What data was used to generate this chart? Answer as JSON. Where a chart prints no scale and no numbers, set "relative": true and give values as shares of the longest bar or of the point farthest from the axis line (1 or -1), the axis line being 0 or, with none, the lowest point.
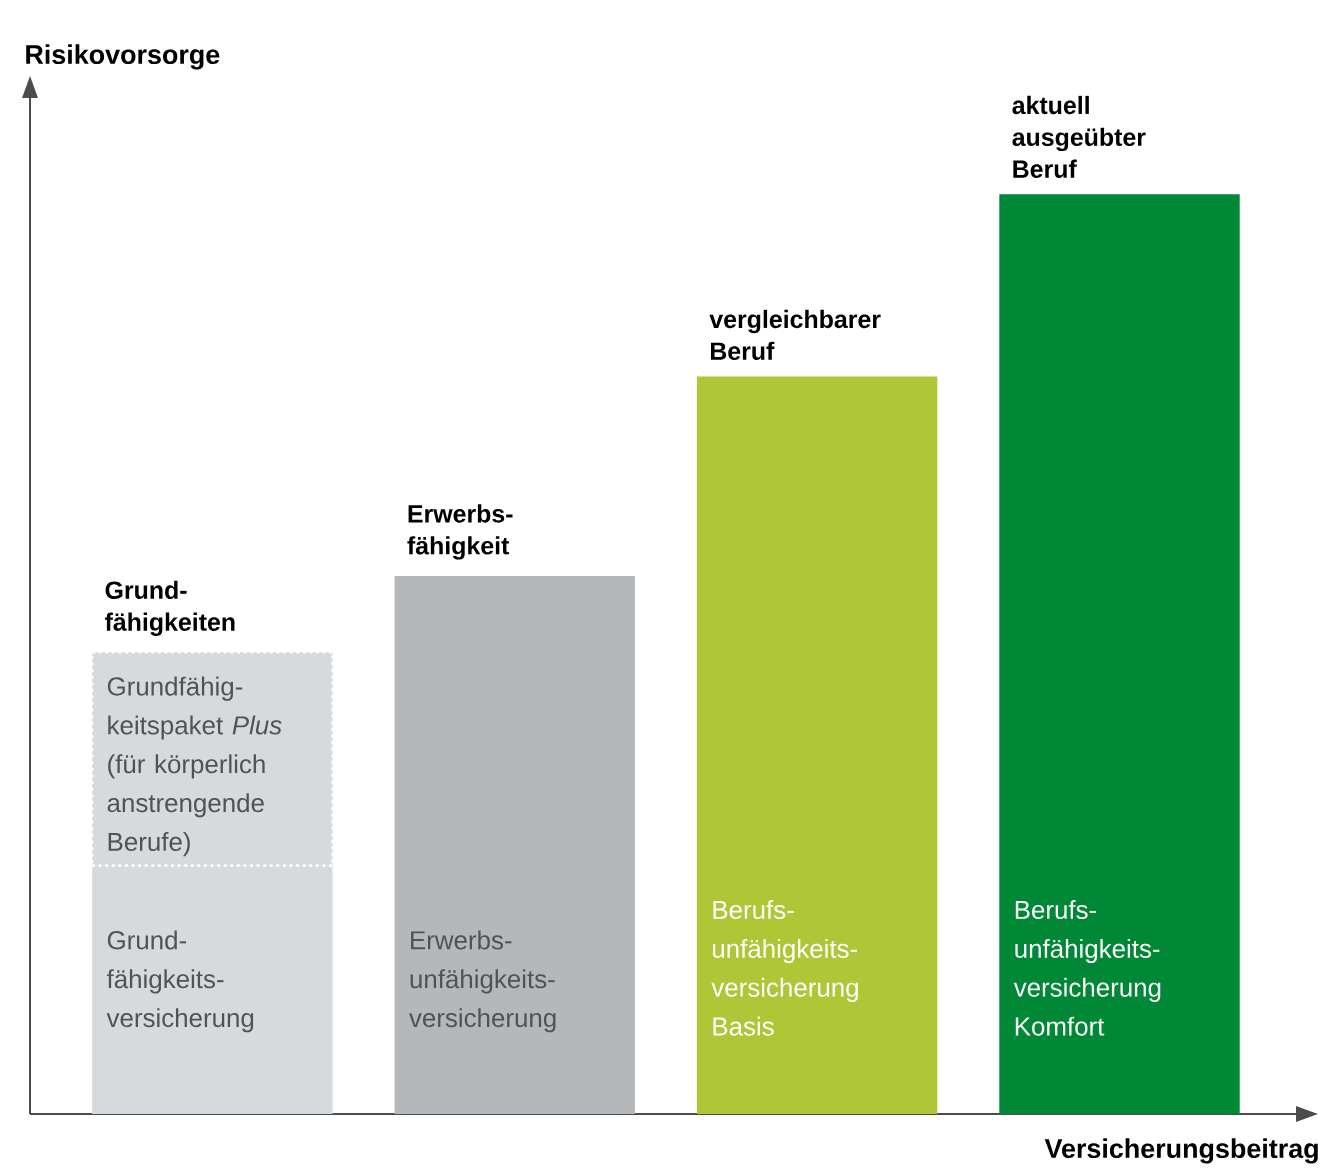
{
  "chart_data": {
    "type": "bar",
    "relative": true,
    "stacked": true,
    "xlabel": "Versicherungsbeitrag",
    "ylabel": "Risikovorsorge",
    "categories": [
      "Grund-fähigkeiten",
      "Erwerbs-fähigkeit",
      "vergleichbarer Beruf",
      "aktuell ausgeübter Beruf"
    ],
    "series": [
      {
        "values": [
          0.27,
          0.585,
          0.802,
          1
        ],
        "colors": [
          "#d7dadd",
          "#b5b8bb",
          "#afc637",
          "#008837"
        ]
      },
      {
        "values": [
          0.232,
          null,
          null,
          null
        ],
        "color": "#d7dadd"
      }
    ],
    "annotations": [
      "Grundfähig-keitspaket *Plus* (für körperlich anstrengende Berufe)",
      "Grund-fähigkeits-versicherung",
      "Erwerbs-unfähigkeits-versicherung",
      "Berufs-unfähigkeits-versicherung Basis",
      "Berufs-unfähigkeits-versicherung Komfort"
    ]
  }
}
